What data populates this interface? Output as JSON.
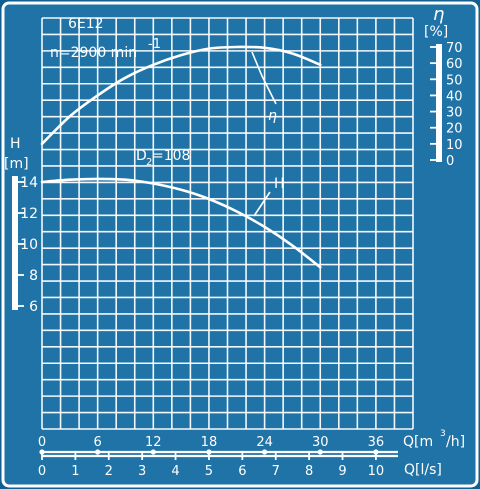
{
  "chart_data": {
    "type": "line",
    "model_label": "6E12",
    "speed_label": "n=2900 min",
    "speed_exp": "-1",
    "impeller_label": "D",
    "impeller_sub": "2",
    "impeller_value": "=108",
    "q_axis_label": "Q[m",
    "q_axis_exp": "3",
    "q_axis_tail": "/h]",
    "ls_axis_label": "Q[l/s]",
    "h_axis_title": "H",
    "h_axis_unit": "[m]",
    "eta_axis_title": "η",
    "eta_axis_unit": "[%]",
    "q_ticks": [
      0,
      6,
      12,
      18,
      24,
      30,
      36
    ],
    "ls_ticks": [
      0,
      1,
      2,
      3,
      4,
      5,
      6,
      7,
      8,
      9,
      10
    ],
    "h_ticks": [
      14,
      12,
      10,
      8,
      6
    ],
    "eta_ticks": [
      70,
      60,
      50,
      40,
      30,
      20,
      10,
      0
    ],
    "xlim": [
      0,
      40
    ],
    "series": [
      {
        "name": "H",
        "x": [
          0,
          3,
          6,
          9,
          12,
          15,
          18,
          21,
          24,
          27,
          30
        ],
        "y": [
          14,
          14.15,
          14.2,
          14.15,
          13.9,
          13.5,
          12.9,
          12.1,
          11.1,
          9.9,
          8.5
        ]
      },
      {
        "name": "η",
        "x": [
          0,
          3,
          6,
          9,
          12,
          15,
          18,
          21,
          24,
          27,
          30
        ],
        "y": [
          10,
          27,
          40,
          51,
          59,
          65,
          69,
          70,
          69.5,
          66,
          59
        ]
      }
    ]
  }
}
